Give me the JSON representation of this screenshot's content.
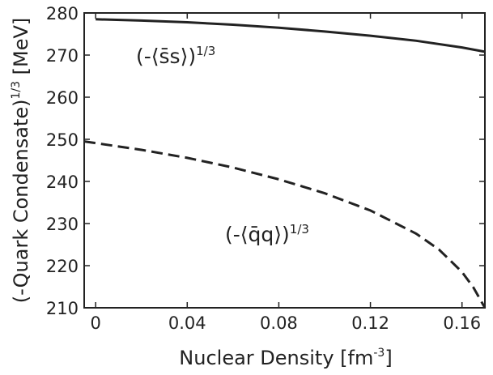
{
  "chart_data": {
    "type": "line",
    "xlabel": "Nuclear Density [fm",
    "xlabel_sup": "-3",
    "xlabel_end": "]",
    "ylabel": "(-Quark Condensate)",
    "ylabel_sup": "1/3",
    "ylabel_end": " [MeV]",
    "xlim": [
      -0.005,
      0.17
    ],
    "ylim": [
      210,
      280
    ],
    "x_ticks": [
      0,
      0.04,
      0.08,
      0.12,
      0.16
    ],
    "x_tick_labels": [
      "0",
      "0.04",
      "0.08",
      "0.12",
      "0.16"
    ],
    "y_ticks": [
      210,
      220,
      230,
      240,
      250,
      260,
      270,
      280
    ],
    "y_tick_labels": [
      "210",
      "220",
      "230",
      "240",
      "250",
      "260",
      "270",
      "280"
    ],
    "grid": false,
    "series": [
      {
        "name": "(-⟨s̄s⟩)",
        "name_sup": "1/3",
        "style": "solid",
        "color": "#222222",
        "x": [
          0,
          0.02,
          0.04,
          0.06,
          0.08,
          0.1,
          0.12,
          0.14,
          0.16,
          0.17
        ],
        "y": [
          278.5,
          278.2,
          277.8,
          277.2,
          276.5,
          275.6,
          274.6,
          273.4,
          271.8,
          270.8
        ]
      },
      {
        "name": "(-⟨q̄q⟩)",
        "name_sup": "1/3",
        "style": "dashed",
        "color": "#222222",
        "x": [
          -0.005,
          0,
          0.02,
          0.04,
          0.06,
          0.08,
          0.1,
          0.12,
          0.14,
          0.15,
          0.16,
          0.165,
          0.17
        ],
        "y": [
          249.5,
          249.1,
          247.5,
          245.6,
          243.3,
          240.5,
          237.2,
          233.1,
          227.6,
          223.8,
          218.5,
          214.8,
          210.0
        ]
      }
    ]
  }
}
